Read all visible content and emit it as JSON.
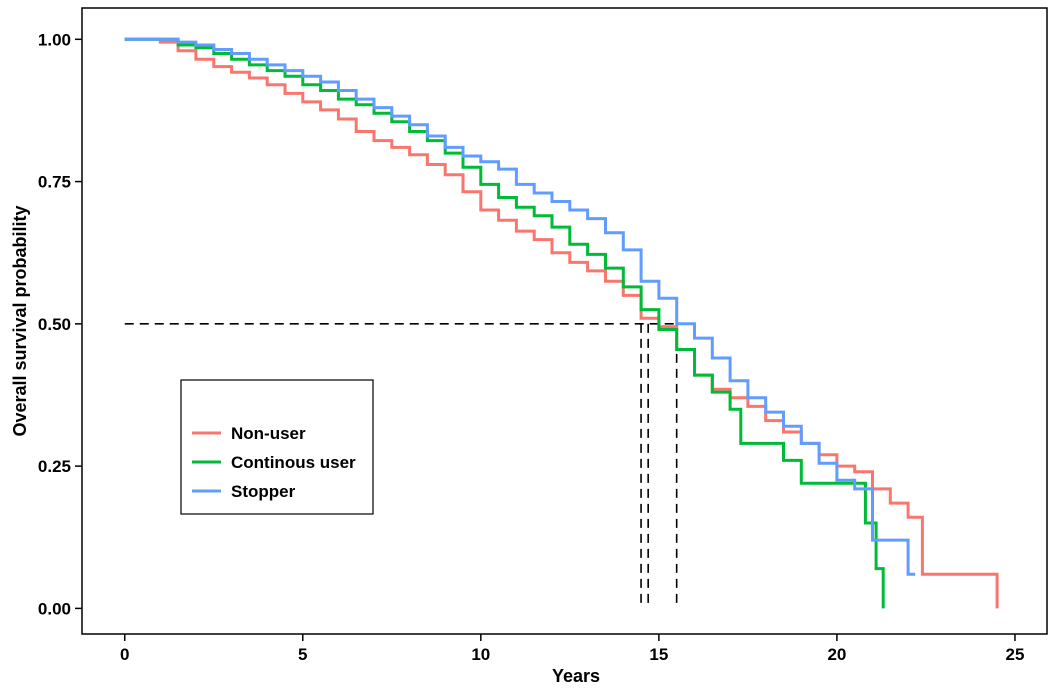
{
  "chart_data": {
    "type": "line",
    "chart_subtype": "kaplan-meier step",
    "title": "",
    "xlabel": "Years",
    "ylabel": "Overall survival probability",
    "xlim": [
      -1.2,
      25.9
    ],
    "ylim": [
      -0.045,
      1.055
    ],
    "x_ticks": [
      0,
      5,
      10,
      15,
      20,
      25
    ],
    "x_tick_labels": [
      "0",
      "5",
      "10",
      "15",
      "20",
      "25"
    ],
    "y_ticks": [
      0,
      0.25,
      0.5,
      0.75,
      1.0
    ],
    "y_tick_labels": [
      "0.00",
      "0.25",
      "0.50",
      "0.75",
      "1.00"
    ],
    "grid": false,
    "legend_position": "left-middle",
    "median_reference_lines": {
      "y": 0.5,
      "x_values": [
        14.5,
        14.7,
        15.5
      ],
      "style": "dashed"
    },
    "series": [
      {
        "name": "Non-user",
        "color": "#F8766D",
        "points": [
          [
            0,
            1.0
          ],
          [
            1,
            0.995
          ],
          [
            1.5,
            0.98
          ],
          [
            2,
            0.965
          ],
          [
            2.5,
            0.952
          ],
          [
            3,
            0.942
          ],
          [
            3.5,
            0.932
          ],
          [
            4,
            0.92
          ],
          [
            4.5,
            0.905
          ],
          [
            5,
            0.89
          ],
          [
            5.5,
            0.876
          ],
          [
            6,
            0.86
          ],
          [
            6.5,
            0.838
          ],
          [
            7,
            0.822
          ],
          [
            7.5,
            0.81
          ],
          [
            8,
            0.797
          ],
          [
            8.5,
            0.78
          ],
          [
            9,
            0.762
          ],
          [
            9.5,
            0.732
          ],
          [
            10,
            0.7
          ],
          [
            10.5,
            0.682
          ],
          [
            11,
            0.663
          ],
          [
            11.5,
            0.648
          ],
          [
            12,
            0.625
          ],
          [
            12.5,
            0.608
          ],
          [
            13,
            0.593
          ],
          [
            13.5,
            0.575
          ],
          [
            14,
            0.55
          ],
          [
            14.5,
            0.51
          ],
          [
            15,
            0.495
          ],
          [
            15.5,
            0.455
          ],
          [
            16,
            0.41
          ],
          [
            16.5,
            0.385
          ],
          [
            17,
            0.37
          ],
          [
            17.5,
            0.355
          ],
          [
            18,
            0.33
          ],
          [
            18.5,
            0.31
          ],
          [
            19,
            0.29
          ],
          [
            19.5,
            0.27
          ],
          [
            20,
            0.25
          ],
          [
            20.5,
            0.24
          ],
          [
            21,
            0.21
          ],
          [
            21.5,
            0.185
          ],
          [
            22,
            0.16
          ],
          [
            22.4,
            0.16
          ],
          [
            22.4,
            0.06
          ],
          [
            24.5,
            0.06
          ],
          [
            24.5,
            0.0
          ]
        ]
      },
      {
        "name": "Continous user",
        "color": "#00BA38",
        "points": [
          [
            0,
            1.0
          ],
          [
            1,
            1.0
          ],
          [
            1.5,
            0.99
          ],
          [
            2,
            0.985
          ],
          [
            2.5,
            0.975
          ],
          [
            3,
            0.965
          ],
          [
            3.5,
            0.955
          ],
          [
            4,
            0.945
          ],
          [
            4.5,
            0.935
          ],
          [
            5,
            0.92
          ],
          [
            5.5,
            0.91
          ],
          [
            6,
            0.895
          ],
          [
            6.5,
            0.885
          ],
          [
            7,
            0.87
          ],
          [
            7.5,
            0.855
          ],
          [
            8,
            0.838
          ],
          [
            8.5,
            0.822
          ],
          [
            9,
            0.8
          ],
          [
            9.5,
            0.775
          ],
          [
            10,
            0.745
          ],
          [
            10.5,
            0.722
          ],
          [
            11,
            0.705
          ],
          [
            11.5,
            0.69
          ],
          [
            12,
            0.67
          ],
          [
            12.5,
            0.64
          ],
          [
            13,
            0.622
          ],
          [
            13.5,
            0.598
          ],
          [
            14,
            0.565
          ],
          [
            14.5,
            0.525
          ],
          [
            15,
            0.49
          ],
          [
            15.5,
            0.455
          ],
          [
            16,
            0.41
          ],
          [
            16.5,
            0.38
          ],
          [
            17,
            0.35
          ],
          [
            17.3,
            0.29
          ],
          [
            18.3,
            0.29
          ],
          [
            18.5,
            0.26
          ],
          [
            19,
            0.22
          ],
          [
            20.5,
            0.22
          ],
          [
            20.8,
            0.15
          ],
          [
            21.1,
            0.15
          ],
          [
            21.1,
            0.07
          ],
          [
            21.3,
            0.07
          ],
          [
            21.3,
            0.0
          ]
        ]
      },
      {
        "name": "Stopper",
        "color": "#619CFF",
        "points": [
          [
            0,
            1.0
          ],
          [
            1,
            1.0
          ],
          [
            1.5,
            0.995
          ],
          [
            2,
            0.99
          ],
          [
            2.5,
            0.982
          ],
          [
            3,
            0.975
          ],
          [
            3.5,
            0.965
          ],
          [
            4,
            0.955
          ],
          [
            4.5,
            0.945
          ],
          [
            5,
            0.935
          ],
          [
            5.5,
            0.925
          ],
          [
            6,
            0.91
          ],
          [
            6.5,
            0.895
          ],
          [
            7,
            0.88
          ],
          [
            7.5,
            0.865
          ],
          [
            8,
            0.85
          ],
          [
            8.5,
            0.83
          ],
          [
            9,
            0.81
          ],
          [
            9.5,
            0.795
          ],
          [
            10,
            0.785
          ],
          [
            10.5,
            0.772
          ],
          [
            11,
            0.745
          ],
          [
            11.5,
            0.73
          ],
          [
            12,
            0.715
          ],
          [
            12.5,
            0.7
          ],
          [
            13,
            0.685
          ],
          [
            13.5,
            0.66
          ],
          [
            14,
            0.63
          ],
          [
            14.5,
            0.575
          ],
          [
            15,
            0.545
          ],
          [
            15.5,
            0.5
          ],
          [
            16,
            0.475
          ],
          [
            16.5,
            0.44
          ],
          [
            17,
            0.4
          ],
          [
            17.5,
            0.37
          ],
          [
            18,
            0.345
          ],
          [
            18.5,
            0.32
          ],
          [
            19,
            0.29
          ],
          [
            19.5,
            0.255
          ],
          [
            20,
            0.225
          ],
          [
            20.5,
            0.21
          ],
          [
            21,
            0.12
          ],
          [
            21.5,
            0.12
          ],
          [
            22,
            0.12
          ],
          [
            22,
            0.06
          ],
          [
            22.2,
            0.06
          ]
        ]
      }
    ]
  }
}
